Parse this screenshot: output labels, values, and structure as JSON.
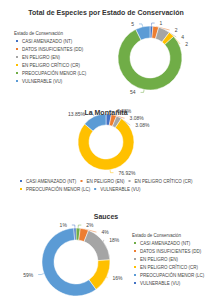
{
  "chart_data": [
    {
      "type": "donut",
      "title": "Total de Especies por Estado de Conservación",
      "legend_title": "Estado de Conservación",
      "legend": "left",
      "data_labels": true,
      "categories": [
        "CASI AMENAZADO (NT)",
        "DATOS INSUFICIENTES (DD)",
        "EN PELIGRO (EN)",
        "EN PELIGRO CRÍTICO (CR)",
        "PREOCUPACIÓN MENOR (LC)",
        "VULNERABLE (VU)"
      ],
      "values": [
        1,
        2,
        4,
        2,
        54,
        5
      ],
      "colors": [
        "#4472c4",
        "#ed7d31",
        "#a5a5a5",
        "#ffc000",
        "#70ad47",
        "#5b9bd5"
      ]
    },
    {
      "type": "donut",
      "title": "La Montañita",
      "legend": "bottom",
      "data_labels": true,
      "categories": [
        "CASI AMENAZADO (NT)",
        "EN PELIGRO (EN)",
        "EN PELIGRO CRÍTICO (CR)",
        "PREOCUPACIÓN MENOR (LC)",
        "VULNERABLE (VU)"
      ],
      "values": [
        3.08,
        3.08,
        3.08,
        76.92,
        13.85
      ],
      "value_labels": [
        "3.08%",
        "3.08%",
        "3.08%",
        "76.92%",
        "13.85%"
      ],
      "colors": [
        "#4472c4",
        "#ed7d31",
        "#a5a5a5",
        "#ffc000",
        "#5b9bd5"
      ]
    },
    {
      "type": "donut",
      "title": "Sauces",
      "legend_title": "Estado de Conservación",
      "legend": "right",
      "data_labels": true,
      "categories": [
        "CASI AMENAZADO (NT)",
        "DATOS INSUFICIENTES (DD)",
        "EN PELIGRO (EN)",
        "EN PELIGRO CRÍTICO (CR)",
        "PREOCUPACIÓN MENOR (LC)",
        "VULNERABLE (VU)"
      ],
      "values": [
        2,
        4,
        18,
        16,
        59,
        1
      ],
      "value_labels": [
        "2%",
        "4%",
        "18%",
        "16%",
        "59%",
        "1%"
      ],
      "colors": [
        "#70ad47",
        "#ed7d31",
        "#a5a5a5",
        "#ffc000",
        "#5b9bd5",
        "#4472c4"
      ]
    }
  ]
}
